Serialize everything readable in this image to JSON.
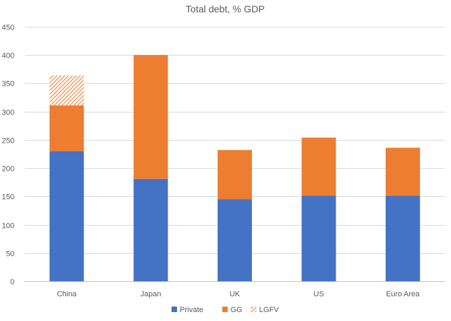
{
  "chart_data": {
    "type": "bar",
    "stacked": true,
    "title": "Total debt, % GDP",
    "xlabel": "",
    "ylabel": "",
    "categories": [
      "China",
      "Japan",
      "UK",
      "US",
      "Euro Area"
    ],
    "series": [
      {
        "name": "Private",
        "values": [
          230,
          181,
          145,
          151,
          151
        ],
        "color": "#4472C4",
        "pattern": "solid"
      },
      {
        "name": "GG",
        "values": [
          81,
          219,
          87,
          103,
          85
        ],
        "color": "#ED7D31",
        "pattern": "solid"
      },
      {
        "name": "LGFV",
        "values": [
          53,
          0,
          0,
          0,
          0
        ],
        "color": "#ED7D31",
        "pattern": "diagonal-hatch"
      }
    ],
    "ylim": [
      0,
      450
    ],
    "yticks": [
      0,
      50,
      100,
      150,
      200,
      250,
      300,
      350,
      400,
      450
    ],
    "grid": true,
    "legend": "bottom"
  }
}
